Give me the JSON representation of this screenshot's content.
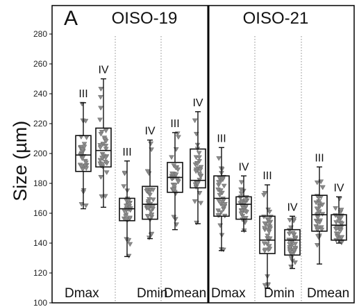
{
  "chart_data": {
    "type": "box",
    "panel_letter": "A",
    "ylabel": "Size (µm)",
    "ylim": [
      100,
      290
    ],
    "yticks": [
      100,
      120,
      140,
      160,
      180,
      200,
      220,
      240,
      260,
      280
    ],
    "panels": [
      {
        "title": "OISO-19",
        "groups": [
          {
            "label": "Dmax",
            "boxes": [
              {
                "class_label": "III",
                "whisker_low": 163,
                "q1": 188,
                "median": 199,
                "q3": 212,
                "whisker_high": 234
              },
              {
                "class_label": "IV",
                "whisker_low": 164,
                "q1": 191,
                "median": 202,
                "q3": 217,
                "whisker_high": 250
              }
            ]
          },
          {
            "label": "Dmin",
            "boxes": [
              {
                "class_label": "III",
                "whisker_low": 131,
                "q1": 155,
                "median": 163,
                "q3": 170,
                "whisker_high": 195
              },
              {
                "class_label": "IV",
                "whisker_low": 143,
                "q1": 156,
                "median": 166,
                "q3": 178,
                "whisker_high": 209
              }
            ]
          },
          {
            "label": "Dmean",
            "boxes": [
              {
                "class_label": "III",
                "whisker_low": 149,
                "q1": 174,
                "median": 184,
                "q3": 194,
                "whisker_high": 214
              },
              {
                "class_label": "IV",
                "whisker_low": 153,
                "q1": 177,
                "median": 182,
                "q3": 203,
                "whisker_high": 228
              }
            ]
          }
        ]
      },
      {
        "title": "OISO-21",
        "groups": [
          {
            "label": "Dmax",
            "boxes": [
              {
                "class_label": "III",
                "whisker_low": 135,
                "q1": 158,
                "median": 170,
                "q3": 185,
                "whisker_high": 204
              },
              {
                "class_label": "IV",
                "whisker_low": 148,
                "q1": 156,
                "median": 166,
                "q3": 171,
                "whisker_high": 185
              }
            ]
          },
          {
            "label": "Dmin",
            "boxes": [
              {
                "class_label": "III",
                "whisker_low": 110,
                "q1": 133,
                "median": 142,
                "q3": 158,
                "whisker_high": 179
              },
              {
                "class_label": "IV",
                "whisker_low": 123,
                "q1": 132,
                "median": 142,
                "q3": 149,
                "whisker_high": 158
              }
            ]
          },
          {
            "label": "Dmean",
            "boxes": [
              {
                "class_label": "III",
                "whisker_low": 126,
                "q1": 148,
                "median": 159,
                "q3": 172,
                "whisker_high": 191
              },
              {
                "class_label": "IV",
                "whisker_low": 140,
                "q1": 142,
                "median": 152,
                "q3": 159,
                "whisker_high": 171
              }
            ]
          }
        ]
      }
    ],
    "colors": {
      "box": "#111111",
      "points": "#8a8a8a",
      "divider": "#888888"
    }
  }
}
